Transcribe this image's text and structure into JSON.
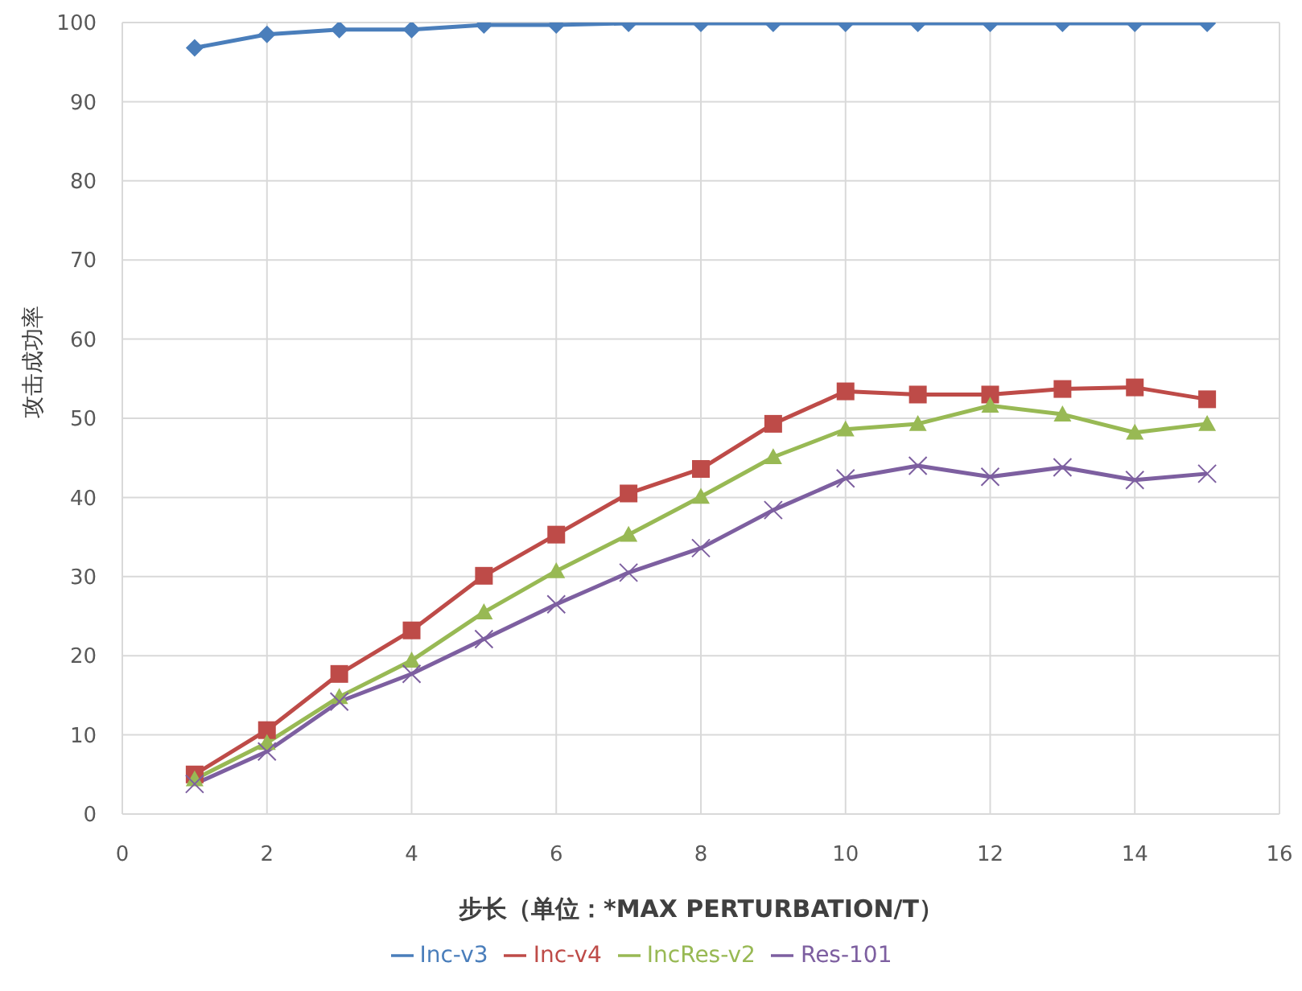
{
  "chart_data": {
    "type": "line",
    "xlabel": "步长（单位：*MAX PERTURBATION/T）",
    "ylabel": "攻击成功率",
    "x": [
      1,
      2,
      3,
      4,
      5,
      6,
      7,
      8,
      9,
      10,
      11,
      12,
      13,
      14,
      15
    ],
    "xlim": [
      0,
      16
    ],
    "xticks": [
      0,
      2,
      4,
      6,
      8,
      10,
      12,
      14,
      16
    ],
    "ylim": [
      0,
      100
    ],
    "yticks": [
      0,
      10,
      20,
      30,
      40,
      50,
      60,
      70,
      80,
      90,
      100
    ],
    "grid": true,
    "legend": "bottom",
    "series": [
      {
        "name": "Inc-v3",
        "color": "#4a7ebb",
        "marker": "diamond",
        "values": [
          96.8,
          98.5,
          99.1,
          99.1,
          99.7,
          99.7,
          99.9,
          99.9,
          99.9,
          99.9,
          99.9,
          99.9,
          99.9,
          99.9,
          99.9
        ]
      },
      {
        "name": "Inc-v4",
        "color": "#be4b48",
        "marker": "square",
        "values": [
          5.0,
          10.6,
          17.7,
          23.2,
          30.1,
          35.3,
          40.5,
          43.6,
          49.3,
          53.4,
          53.0,
          53.0,
          53.7,
          53.9,
          52.4
        ]
      },
      {
        "name": "IncRes-v2",
        "color": "#98b954",
        "marker": "triangle",
        "values": [
          4.4,
          9.0,
          14.8,
          19.4,
          25.5,
          30.7,
          35.3,
          40.1,
          45.1,
          48.6,
          49.3,
          51.6,
          50.5,
          48.2,
          49.3
        ]
      },
      {
        "name": "Res-101",
        "color": "#7d5fa0",
        "marker": "cross",
        "values": [
          3.8,
          7.9,
          14.2,
          17.7,
          22.1,
          26.5,
          30.5,
          33.6,
          38.4,
          42.4,
          44.0,
          42.6,
          43.8,
          42.2,
          43.0
        ]
      }
    ]
  }
}
